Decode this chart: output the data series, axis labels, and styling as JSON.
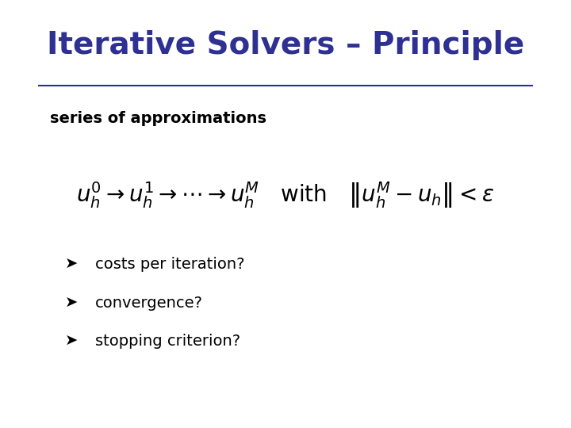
{
  "title": "Iterative Solvers – Principle",
  "title_color": "#2E3192",
  "title_fontsize": 28,
  "bg_color": "#ffffff",
  "line_color": "#2E3192",
  "subtitle": "series of approximations",
  "subtitle_fontsize": 14,
  "subtitle_color": "#000000",
  "formula": "$u_h^0 \\\\rightarrow u_h^1 \\\\rightarrow \\\\cdots \\\\rightarrow u_h^M$ \\u2002 with \\u2002 $\\\\left\\\\|u_h^M - u_h\\\\right\\\\| < \\\\varepsilon$",
  "formula_fontsize": 20,
  "formula_color": "#000000",
  "bullet_symbol": "Ø",
  "bullets": [
    "costs per iteration?",
    "convergence?",
    "stopping criterion?"
  ],
  "bullet_fontsize": 14,
  "bullet_color": "#000000"
}
